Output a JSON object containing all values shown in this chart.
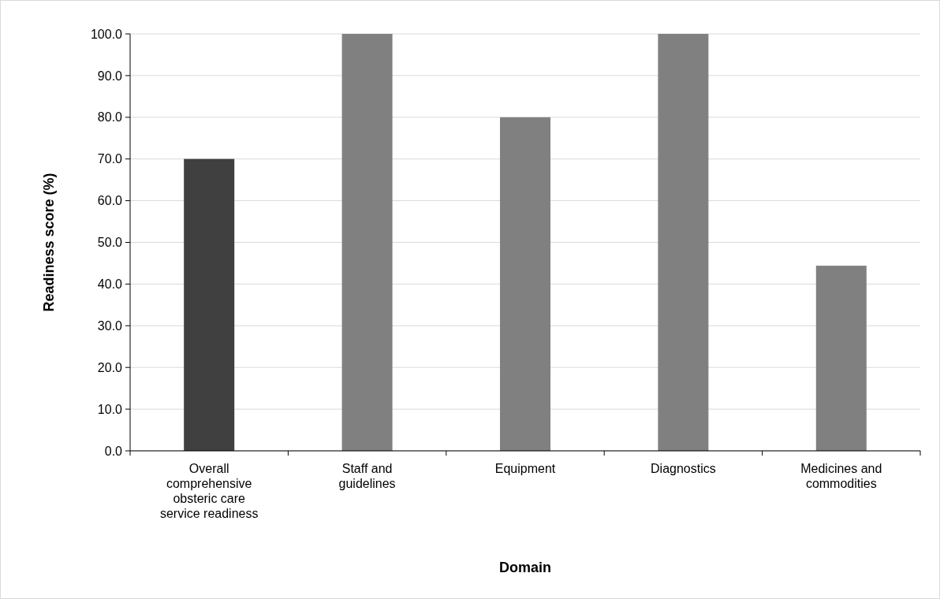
{
  "chart_data": {
    "type": "bar",
    "xlabel": "Domain",
    "ylabel": "Readiness score (%)",
    "categories": [
      "Overall comprehensive obsteric care service readiness",
      "Staff and guidelines",
      "Equipment",
      "Diagnostics",
      "Medicines and commodities"
    ],
    "values": [
      70,
      100,
      80,
      100,
      44.4
    ],
    "colors": [
      "#404040",
      "#808080",
      "#808080",
      "#808080",
      "#808080"
    ],
    "ylim": [
      0,
      100
    ],
    "yticks": [
      {
        "value": 0,
        "label": "0.0"
      },
      {
        "value": 10,
        "label": "10.0"
      },
      {
        "value": 20,
        "label": "20.0"
      },
      {
        "value": 30,
        "label": "30.0"
      },
      {
        "value": 40,
        "label": "40.0"
      },
      {
        "value": 50,
        "label": "50.0"
      },
      {
        "value": 60,
        "label": "60.0"
      },
      {
        "value": 70,
        "label": "70.0"
      },
      {
        "value": 80,
        "label": "80.0"
      },
      {
        "value": 90,
        "label": "90.0"
      },
      {
        "value": 100,
        "label": "100.0"
      }
    ],
    "grid": "y"
  }
}
